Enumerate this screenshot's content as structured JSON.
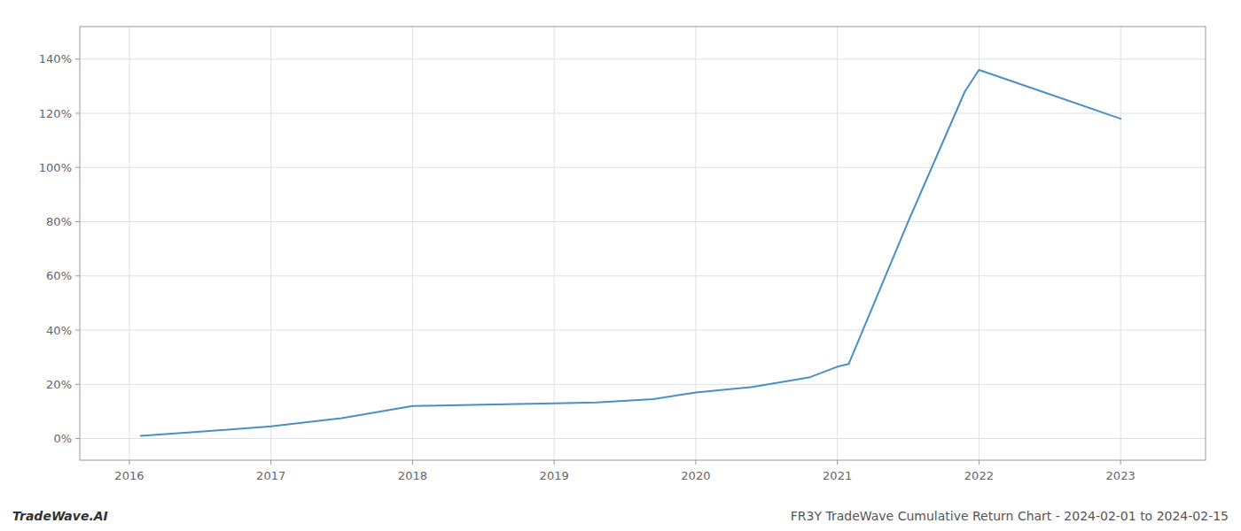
{
  "chart_data": {
    "type": "line",
    "x": [
      2016.08,
      2016.5,
      2017.0,
      2017.5,
      2018.0,
      2018.5,
      2019.0,
      2019.3,
      2019.7,
      2020.0,
      2020.4,
      2020.8,
      2021.0,
      2021.08,
      2021.5,
      2021.9,
      2022.0,
      2022.5,
      2023.0
    ],
    "values": [
      1.0,
      2.5,
      4.5,
      7.5,
      12.0,
      12.5,
      13.0,
      13.3,
      14.5,
      17.0,
      19.0,
      22.5,
      26.5,
      27.5,
      80.0,
      128.0,
      136.0,
      127.0,
      118.0
    ],
    "color": "#4a90c4",
    "xlim": [
      2015.65,
      2023.6
    ],
    "ylim": [
      -8,
      152
    ],
    "xticks": [
      2016,
      2017,
      2018,
      2019,
      2020,
      2021,
      2022,
      2023
    ],
    "yticks": [
      {
        "value": 0,
        "label": "0%"
      },
      {
        "value": 20,
        "label": "20%"
      },
      {
        "value": 40,
        "label": "40%"
      },
      {
        "value": 60,
        "label": "60%"
      },
      {
        "value": 80,
        "label": "80%"
      },
      {
        "value": 100,
        "label": "100%"
      },
      {
        "value": 120,
        "label": "120%"
      },
      {
        "value": 140,
        "label": "140%"
      }
    ],
    "grid": true,
    "annotations": [
      "TradeWave.AI",
      "FR3Y TradeWave Cumulative Return Chart - 2024-02-01 to 2024-02-15"
    ]
  }
}
